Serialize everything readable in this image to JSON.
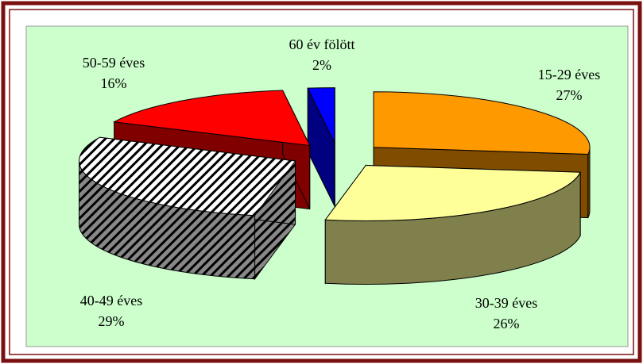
{
  "chart_data": {
    "type": "pie3d",
    "categories": [
      "15-29 éves",
      "30-39 éves",
      "40-49 éves",
      "50-59 éves",
      "60 év fölött"
    ],
    "values": [
      27,
      26,
      29,
      16,
      2
    ],
    "value_labels": [
      "27%",
      "26%",
      "29%",
      "16%",
      "2%"
    ],
    "colors": [
      "#ff9900",
      "#ffff99",
      "hatch",
      "#ff0000",
      "#0000ff"
    ],
    "side_colors": [
      "#7f4c00",
      "#80804c",
      "hatch",
      "#800000",
      "#000080"
    ]
  }
}
